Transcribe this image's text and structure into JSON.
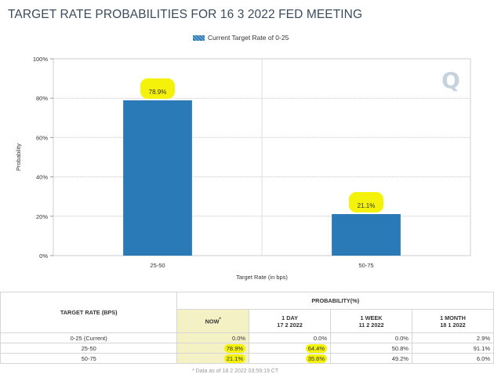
{
  "page": {
    "title": "TARGET RATE PROBABILITIES FOR 16 3 2022 FED MEETING"
  },
  "chart_data": {
    "type": "bar",
    "title": "TARGET RATE PROBABILITIES FOR 16 3 2022 FED MEETING",
    "categories": [
      "25-50",
      "50-75"
    ],
    "series": [
      {
        "name": "Current Target Rate of 0-25",
        "values": [
          78.9,
          21.1
        ]
      }
    ],
    "value_labels": [
      "78.9%",
      "21.1%"
    ],
    "xlabel": "Target Rate (in bps)",
    "ylabel": "Probability",
    "ylim": [
      0,
      100
    ],
    "yticks": [
      0,
      20,
      40,
      60,
      80,
      100
    ],
    "ytick_labels": [
      "0%",
      "20%",
      "40%",
      "60%",
      "80%",
      "100%"
    ],
    "grid": true,
    "legend": "top-center",
    "bar_color": "#2b7ab8",
    "highlight_color": "#f4f20a"
  },
  "legend": {
    "label": "Current Target Rate of 0-25"
  },
  "watermark": {
    "text": "Q"
  },
  "table": {
    "header_target": "TARGET RATE (BPS)",
    "header_probability": "PROBABILITY(%)",
    "columns": [
      {
        "label": "NOW",
        "sup": "*",
        "date": ""
      },
      {
        "label": "1 DAY",
        "date": "17 2 2022"
      },
      {
        "label": "1 WEEK",
        "date": "11 2 2022"
      },
      {
        "label": "1 MONTH",
        "date": "18 1 2022"
      }
    ],
    "rows": [
      {
        "rate": "0-25 (Current)",
        "now": "0.0%",
        "day": "0.0%",
        "week": "0.0%",
        "month": "2.9%"
      },
      {
        "rate": "25-50",
        "now": "78.9%",
        "day": "64.4%",
        "week": "50.8%",
        "month": "91.1%"
      },
      {
        "rate": "50-75",
        "now": "21.1%",
        "day": "35.6%",
        "week": "49.2%",
        "month": "6.0%"
      }
    ],
    "footnote": "* Data as of 18 2 2022 03:59:19 CT"
  }
}
